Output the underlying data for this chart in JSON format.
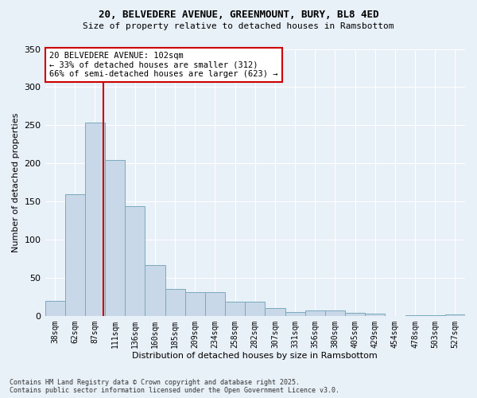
{
  "title1": "20, BELVEDERE AVENUE, GREENMOUNT, BURY, BL8 4ED",
  "title2": "Size of property relative to detached houses in Ramsbottom",
  "xlabel": "Distribution of detached houses by size in Ramsbottom",
  "ylabel": "Number of detached properties",
  "categories": [
    "38sqm",
    "62sqm",
    "87sqm",
    "111sqm",
    "136sqm",
    "160sqm",
    "185sqm",
    "209sqm",
    "234sqm",
    "258sqm",
    "282sqm",
    "307sqm",
    "331sqm",
    "356sqm",
    "380sqm",
    "405sqm",
    "429sqm",
    "454sqm",
    "478sqm",
    "503sqm",
    "527sqm"
  ],
  "values": [
    20,
    160,
    253,
    204,
    144,
    67,
    35,
    31,
    31,
    19,
    19,
    10,
    5,
    7,
    7,
    4,
    3,
    0,
    1,
    1,
    2
  ],
  "bar_color": "#c8d8e8",
  "bar_edge_color": "#7aaabb",
  "vline_x_idx": 2,
  "vline_x_offset": 0.42,
  "vline_color": "#cc0000",
  "annotation_text": "20 BELVEDERE AVENUE: 102sqm\n← 33% of detached houses are smaller (312)\n66% of semi-detached houses are larger (623) →",
  "annotation_box_edgecolor": "#cc0000",
  "footer1": "Contains HM Land Registry data © Crown copyright and database right 2025.",
  "footer2": "Contains public sector information licensed under the Open Government Licence v3.0.",
  "background_color": "#e8f0f8",
  "ylim": [
    0,
    350
  ],
  "yticks": [
    0,
    50,
    100,
    150,
    200,
    250,
    300,
    350
  ]
}
